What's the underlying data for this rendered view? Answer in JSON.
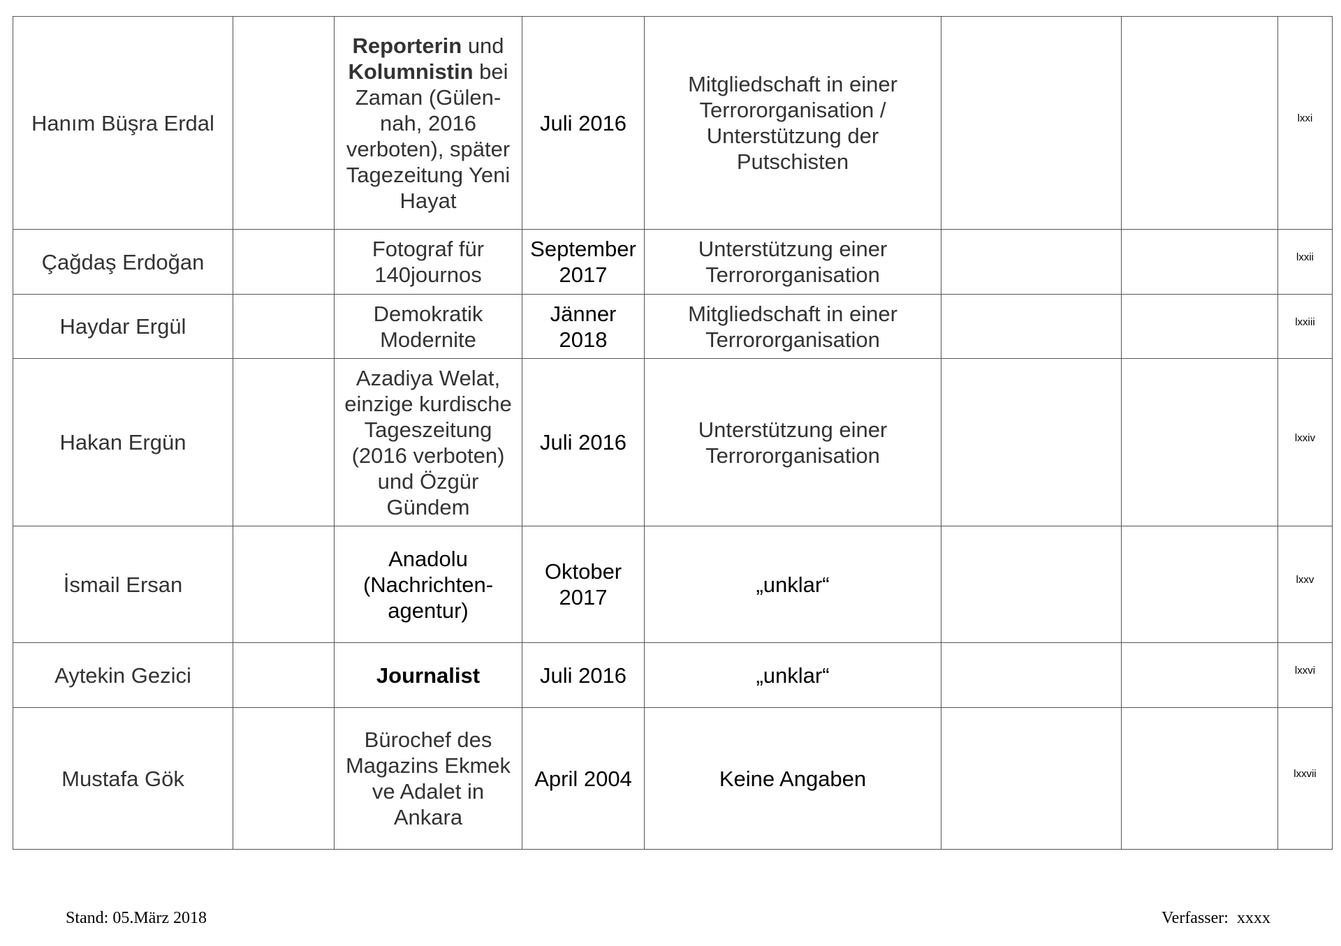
{
  "table": {
    "rows": [
      {
        "name": "Hanım Büşra Erdal",
        "col2": "",
        "employer": [
          {
            "text": "Reporterin",
            "bold": true
          },
          {
            "text": " und "
          },
          {
            "text": "Kolumnistin",
            "bold": true
          },
          {
            "text": " bei Zaman (Gülen-nah, 2016 verboten), später Tagezeitung Yeni Hayat"
          }
        ],
        "employer_tone": "dark",
        "date": "Juli 2016",
        "date_tone": "black",
        "charge": "Mitgliedschaft in einer Terrororganisation / Unterstützung der Putschisten",
        "charge_tone": "dark",
        "col6": "",
        "col7": "",
        "footnote": "lxxi"
      },
      {
        "name": "Çağdaş Erdoğan",
        "col2": "",
        "employer": [
          {
            "text": "Fotograf für 140journos"
          }
        ],
        "employer_tone": "dark",
        "date": "September 2017",
        "date_tone": "black",
        "charge": "Unterstützung einer Terrororganisation",
        "charge_tone": "dark",
        "col6": "",
        "col7": "",
        "footnote": "lxxii"
      },
      {
        "name": "Haydar Ergül",
        "col2": "",
        "employer": [
          {
            "text": "Demokratik Modernite"
          }
        ],
        "employer_tone": "dark",
        "date": "Jänner 2018",
        "date_tone": "black",
        "charge": "Mitgliedschaft in einer Terrororganisation",
        "charge_tone": "dark",
        "col6": "",
        "col7": "",
        "footnote": "lxxiii"
      },
      {
        "name": "Hakan Ergün",
        "col2": "",
        "employer": [
          {
            "text": "Azadiya Welat, einzige kurdische Tageszeitung (2016 verboten) und Özgür Gündem"
          }
        ],
        "employer_tone": "dark",
        "date": "Juli 2016",
        "date_tone": "black",
        "charge": "Unterstützung einer Terrororganisation",
        "charge_tone": "dark",
        "col6": "",
        "col7": "",
        "footnote": "lxxiv"
      },
      {
        "name": "İsmail Ersan",
        "col2": "",
        "employer": [
          {
            "text": "Anadolu (Nachrichten-agentur)"
          }
        ],
        "employer_tone": "black",
        "date": "Oktober 2017",
        "date_tone": "black",
        "charge": "„unklar“",
        "charge_tone": "black",
        "col6": "",
        "col7": "",
        "footnote": "lxxv"
      },
      {
        "name": "Aytekin Gezici",
        "col2": "",
        "employer": [
          {
            "text": "Journalist",
            "bold": true
          }
        ],
        "employer_tone": "black",
        "date": "Juli 2016",
        "date_tone": "black",
        "charge": "„unklar“",
        "charge_tone": "black",
        "col6": "",
        "col7": "",
        "footnote": "lxxvi"
      },
      {
        "name": "Mustafa Gök",
        "col2": "",
        "employer": [
          {
            "text": "Bürochef des Magazins Ekmek ve Adalet in Ankara"
          }
        ],
        "employer_tone": "dark",
        "date": "April 2004",
        "date_tone": "black",
        "charge": "Keine Angaben",
        "charge_tone": "black",
        "col6": "",
        "col7": "",
        "footnote": "lxxvii"
      }
    ]
  },
  "footer": {
    "stand": "Stand: 05.März 2018",
    "author": "Verfasser:  xxxx"
  }
}
